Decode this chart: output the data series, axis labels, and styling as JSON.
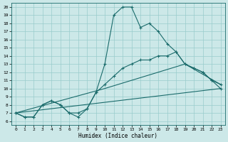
{
  "xlabel": "Humidex (Indice chaleur)",
  "bg_color": "#cce8e8",
  "line_color": "#1a6b6b",
  "grid_color": "#99cccc",
  "xlim": [
    -0.5,
    23.5
  ],
  "ylim": [
    5.5,
    20.5
  ],
  "xticks": [
    0,
    1,
    2,
    3,
    4,
    5,
    6,
    7,
    8,
    9,
    10,
    11,
    12,
    13,
    14,
    15,
    16,
    17,
    18,
    19,
    20,
    21,
    22,
    23
  ],
  "yticks": [
    6,
    7,
    8,
    9,
    10,
    11,
    12,
    13,
    14,
    15,
    16,
    17,
    18,
    19,
    20
  ],
  "line1_x": [
    0,
    1,
    2,
    3,
    4,
    5,
    6,
    7,
    8,
    9,
    10,
    11,
    12,
    13,
    14,
    15,
    16,
    17,
    18,
    19,
    20,
    21,
    22,
    23
  ],
  "line1_y": [
    7.0,
    6.5,
    6.5,
    8.0,
    8.5,
    8.0,
    7.0,
    6.5,
    7.5,
    9.5,
    13.0,
    19.0,
    20.0,
    20.0,
    17.5,
    18.0,
    17.0,
    15.5,
    14.5,
    13.0,
    12.5,
    12.0,
    11.0,
    10.0
  ],
  "line2_x": [
    0,
    1,
    2,
    3,
    4,
    5,
    6,
    7,
    8,
    9,
    10,
    11,
    12,
    13,
    14,
    15,
    16,
    17,
    18,
    19,
    20,
    21,
    22,
    23
  ],
  "line2_y": [
    7.0,
    6.5,
    6.5,
    8.0,
    8.5,
    8.0,
    7.0,
    7.0,
    7.5,
    9.5,
    10.5,
    11.5,
    12.5,
    13.0,
    13.5,
    13.5,
    14.0,
    14.0,
    14.5,
    13.0,
    12.5,
    12.0,
    11.0,
    10.5
  ],
  "line3_x": [
    0,
    10,
    19,
    23
  ],
  "line3_y": [
    7.0,
    10.0,
    13.0,
    10.5
  ],
  "line4_x": [
    0,
    23
  ],
  "line4_y": [
    7.0,
    10.0
  ]
}
